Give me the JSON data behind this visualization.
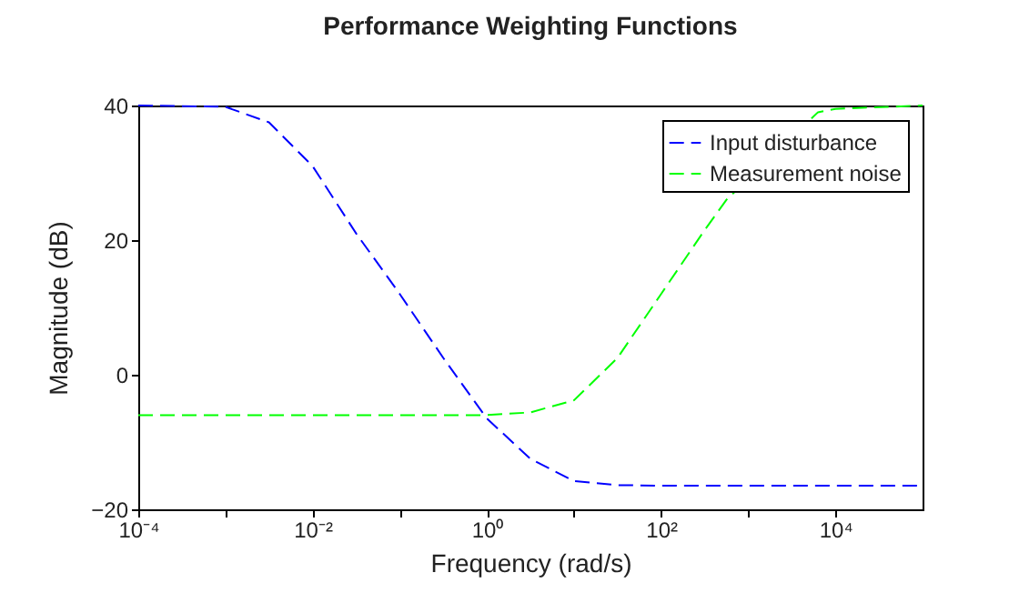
{
  "chart_data": {
    "type": "line",
    "title": "Performance Weighting Functions",
    "xlabel": "Frequency (rad/s)",
    "ylabel": "Magnitude (dB)",
    "log": "x",
    "xlim": [
      0.0001,
      100000
    ],
    "xticks": [
      {
        "value": 0.0001,
        "label": "10⁻⁴"
      },
      {
        "value": 0.001,
        "label": null
      },
      {
        "value": 0.01,
        "label": "10⁻²"
      },
      {
        "value": 0.1,
        "label": null
      },
      {
        "value": 1,
        "label": "10⁰"
      },
      {
        "value": 10,
        "label": null
      },
      {
        "value": 100,
        "label": "10²"
      },
      {
        "value": 1000,
        "label": null
      },
      {
        "value": 10000,
        "label": "10⁴"
      }
    ],
    "ylim": [
      -20,
      40
    ],
    "yticks": [
      -20,
      0,
      20,
      40
    ],
    "grid": false,
    "legend": "top right",
    "line_style": "dashed",
    "marker": "none",
    "series": [
      {
        "name": "Input disturbance",
        "color": "#0000ff",
        "x": [
          0.0001,
          0.001,
          0.00316,
          0.01,
          0.0316,
          0.1,
          0.316,
          1,
          3.16,
          10,
          31.6,
          100,
          100000
        ],
        "values": [
          40,
          39.8,
          37.5,
          31,
          21,
          12,
          2.5,
          -6.5,
          -12.5,
          -15.8,
          -16.4,
          -16.5,
          -16.5
        ]
      },
      {
        "name": "Measurement noise",
        "color": "#00ff00",
        "x": [
          0.0001,
          1,
          3.16,
          10,
          31.6,
          100,
          316,
          562,
          6310,
          10000,
          100000
        ],
        "values": [
          -6,
          -6,
          -5.6,
          -3.8,
          2.5,
          12,
          21.5,
          26,
          39,
          39.5,
          40
        ]
      }
    ]
  }
}
